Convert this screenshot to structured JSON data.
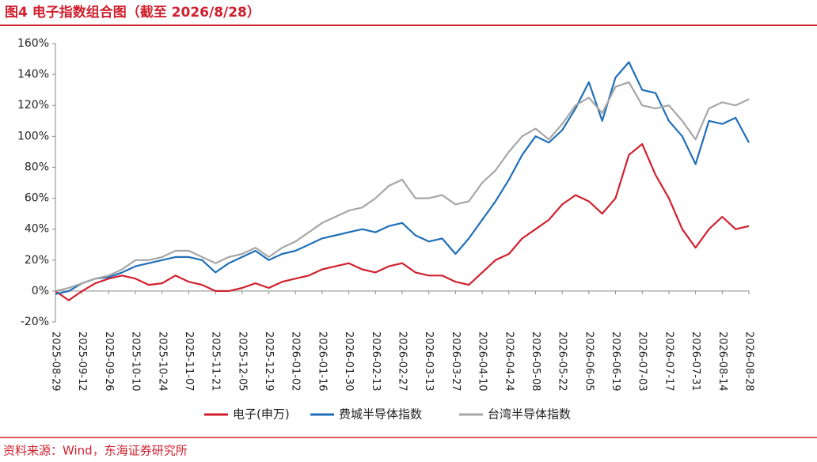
{
  "chart_data": {
    "type": "line",
    "title": "图4  电子指数组合图（截至 2026/8/28）",
    "source": "资料来源：Wind，东海证券研究所",
    "x": [
      "2025-08-29",
      "2025-09-05",
      "2025-09-12",
      "2025-09-19",
      "2025-09-26",
      "2025-10-03",
      "2025-10-10",
      "2025-10-17",
      "2025-10-24",
      "2025-10-31",
      "2025-11-07",
      "2025-11-14",
      "2025-11-21",
      "2025-11-28",
      "2025-12-05",
      "2025-12-12",
      "2025-12-19",
      "2025-12-26",
      "2026-01-02",
      "2026-01-09",
      "2026-01-16",
      "2026-01-23",
      "2026-01-30",
      "2026-02-06",
      "2026-02-13",
      "2026-02-20",
      "2026-02-27",
      "2026-03-06",
      "2026-03-13",
      "2026-03-20",
      "2026-03-27",
      "2026-04-03",
      "2026-04-10",
      "2026-04-17",
      "2026-04-24",
      "2026-05-01",
      "2026-05-08",
      "2026-05-15",
      "2026-05-22",
      "2026-05-29",
      "2026-06-05",
      "2026-06-12",
      "2026-06-19",
      "2026-06-26",
      "2026-07-03",
      "2026-07-10",
      "2026-07-17",
      "2026-07-24",
      "2026-07-31",
      "2026-08-07",
      "2026-08-14",
      "2026-08-21",
      "2026-08-28"
    ],
    "series": [
      {
        "name": "电子(申万)",
        "color": "#d0202e",
        "values": [
          0,
          -6,
          0,
          5,
          8,
          10,
          8,
          4,
          5,
          10,
          6,
          4,
          0,
          0,
          2,
          5,
          2,
          6,
          8,
          10,
          14,
          16,
          18,
          14,
          12,
          16,
          18,
          12,
          10,
          10,
          6,
          4,
          12,
          20,
          24,
          34,
          40,
          46,
          56,
          62,
          58,
          50,
          60,
          88,
          95,
          75,
          60,
          40,
          28,
          40,
          48,
          40,
          42
        ]
      },
      {
        "name": "费城半导体指数",
        "color": "#1f6fb8",
        "values": [
          -2,
          0,
          5,
          8,
          9,
          12,
          16,
          18,
          20,
          22,
          22,
          20,
          12,
          18,
          22,
          26,
          20,
          24,
          26,
          30,
          34,
          36,
          38,
          40,
          38,
          42,
          44,
          36,
          32,
          34,
          24,
          34,
          46,
          58,
          72,
          88,
          100,
          96,
          104,
          118,
          135,
          110,
          138,
          148,
          130,
          128,
          110,
          100,
          82,
          110,
          108,
          112,
          96
        ]
      },
      {
        "name": "台湾半导体指数",
        "color": "#a6a6a6",
        "values": [
          0,
          2,
          5,
          8,
          10,
          14,
          20,
          20,
          22,
          26,
          26,
          22,
          18,
          22,
          24,
          28,
          22,
          28,
          32,
          38,
          44,
          48,
          52,
          54,
          60,
          68,
          72,
          60,
          60,
          62,
          56,
          58,
          70,
          78,
          90,
          100,
          105,
          98,
          108,
          120,
          125,
          115,
          132,
          135,
          120,
          118,
          120,
          110,
          98,
          118,
          122,
          120,
          124
        ]
      }
    ],
    "xlim": [
      "2025-08-29",
      "2026-08-28"
    ],
    "xticks": [
      "2025-08-29",
      "2025-09-12",
      "2025-09-26",
      "2025-10-10",
      "2025-10-24",
      "2025-11-07",
      "2025-11-21",
      "2025-12-05",
      "2025-12-19",
      "2026-01-02",
      "2026-01-16",
      "2026-01-30",
      "2026-02-13",
      "2026-02-27",
      "2026-03-13",
      "2026-03-27",
      "2026-04-10",
      "2026-04-24",
      "2026-05-08",
      "2026-05-22",
      "2026-06-05",
      "2026-06-19",
      "2026-07-03",
      "2026-07-17",
      "2026-07-31",
      "2026-08-14",
      "2026-08-28"
    ],
    "ylim": [
      -20,
      160
    ],
    "yticks": [
      {
        "value": -20,
        "label": "-20%"
      },
      {
        "value": 0,
        "label": "0%"
      },
      {
        "value": 20,
        "label": "20%"
      },
      {
        "value": 40,
        "label": "40%"
      },
      {
        "value": 60,
        "label": "60%"
      },
      {
        "value": 80,
        "label": "80%"
      },
      {
        "value": 100,
        "label": "100%"
      },
      {
        "value": 120,
        "label": "120%"
      },
      {
        "value": 140,
        "label": "140%"
      },
      {
        "value": 160,
        "label": "160%"
      }
    ],
    "grid": false,
    "legend": "bottom"
  }
}
